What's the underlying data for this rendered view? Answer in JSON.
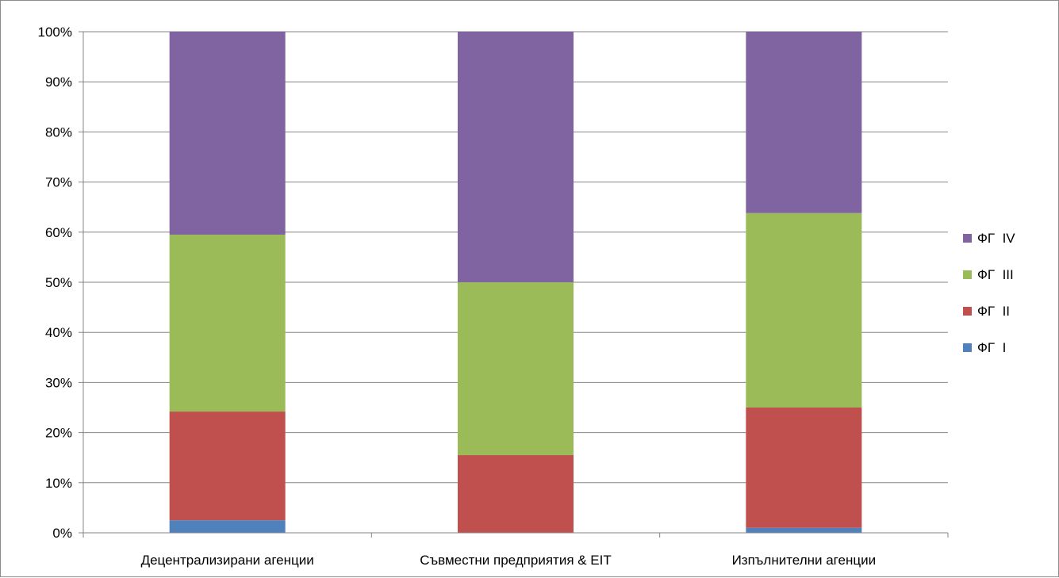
{
  "chart_data": {
    "type": "bar",
    "stacked": true,
    "percent": true,
    "categories": [
      "Децентрализирани агенции",
      "Съвместни предприятия  & EIT",
      "Изпълнителни агенции"
    ],
    "series": [
      {
        "name": "ФГ  I",
        "color": "#4f81bd",
        "values": [
          2.5,
          0,
          1
        ]
      },
      {
        "name": "ФГ  II",
        "color": "#c0504d",
        "values": [
          21.7,
          15.5,
          24
        ]
      },
      {
        "name": "ФГ  III",
        "color": "#9bbb59",
        "values": [
          35.3,
          34.5,
          38.8
        ]
      },
      {
        "name": "ФГ  IV",
        "color": "#8064a2",
        "values": [
          40.5,
          50,
          36.2
        ]
      }
    ],
    "y_ticks": [
      "0%",
      "10%",
      "20%",
      "30%",
      "40%",
      "50%",
      "60%",
      "70%",
      "80%",
      "90%",
      "100%"
    ],
    "ylim": [
      0,
      100
    ],
    "grid": true,
    "legend_position": "right",
    "legend_order": [
      "ФГ  IV",
      "ФГ  III",
      "ФГ  II",
      "ФГ  I"
    ]
  }
}
